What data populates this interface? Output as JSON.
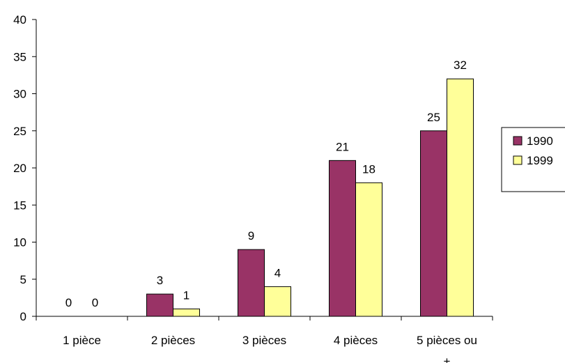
{
  "chart_data": {
    "type": "bar",
    "categories": [
      "1 pièce",
      "2 pièces",
      "3 pièces",
      "4 pièces",
      "5 pièces ou +"
    ],
    "series": [
      {
        "name": "1990",
        "values": [
          0,
          3,
          9,
          21,
          25
        ],
        "color": "#993366"
      },
      {
        "name": "1999",
        "values": [
          0,
          1,
          4,
          18,
          32
        ],
        "color": "#FFFF99"
      }
    ],
    "title": "",
    "xlabel": "",
    "ylabel": "",
    "ylim": [
      0,
      40
    ],
    "yticks": [
      0,
      5,
      10,
      15,
      20,
      25,
      30,
      35,
      40
    ],
    "grid": false,
    "legend_position": "right",
    "data_labels": true
  }
}
